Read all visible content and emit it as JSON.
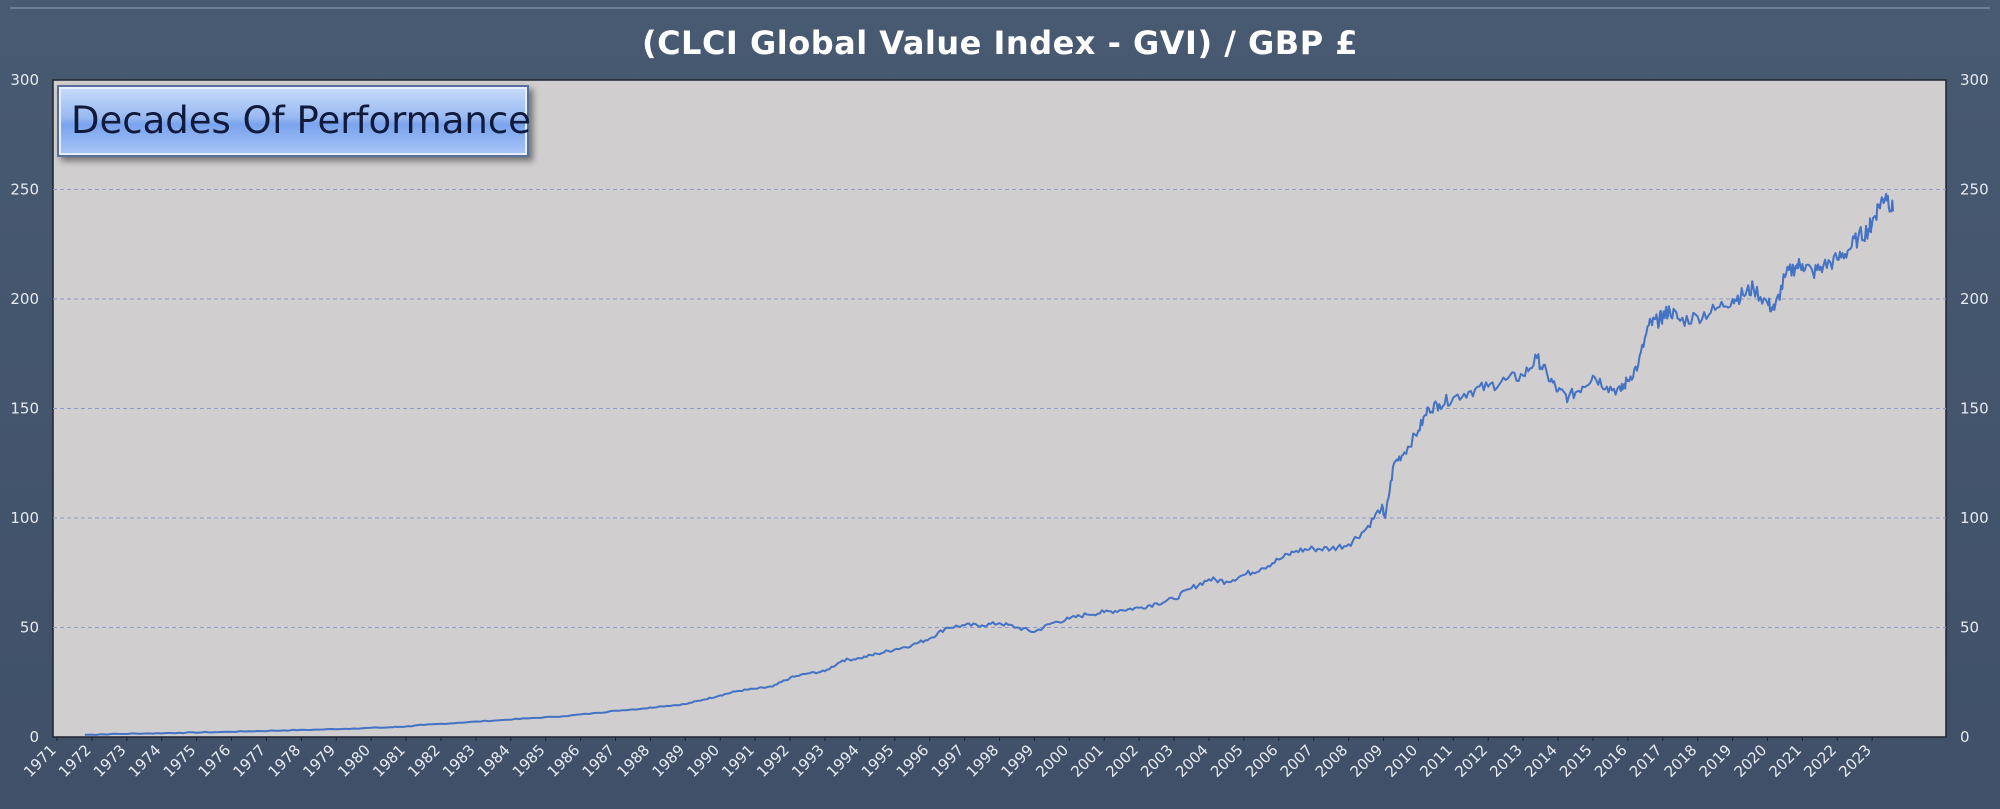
{
  "chart_data": {
    "type": "line",
    "title": "(CLCI Global Value Index - GVI) / GBP £",
    "annotation": "Decades Of Performance",
    "xlabel": "",
    "ylabel": "",
    "xlim": [
      1971,
      2025
    ],
    "ylim": [
      0,
      300
    ],
    "yticks": [
      0,
      50,
      100,
      150,
      200,
      250,
      300
    ],
    "xticks": [
      "1971",
      "1972",
      "1973",
      "1974",
      "1975",
      "1976",
      "1977",
      "1978",
      "1979",
      "1980",
      "1981",
      "1982",
      "1983",
      "1984",
      "1985",
      "1986",
      "1987",
      "1988",
      "1989",
      "1990",
      "1991",
      "1992",
      "1993",
      "1994",
      "1995",
      "1996",
      "1997",
      "1998",
      "1999",
      "2000",
      "2001",
      "2002",
      "2003",
      "2004",
      "2005",
      "2006",
      "2007",
      "2008",
      "2009",
      "2010",
      "2011",
      "2012",
      "2013",
      "2014",
      "2015",
      "2016",
      "2017",
      "2018",
      "2019",
      "2020",
      "2021",
      "2022",
      "2023"
    ],
    "grid": "horizontal dashed",
    "y_axis_both_sides": true,
    "colors": {
      "background": "#44546a",
      "plot_area": "#d0cece",
      "line": "#4472c4",
      "grid": "#8f9bc4",
      "text": "#ffffff"
    },
    "series": [
      {
        "name": "",
        "x": [
          1971.8,
          1972.5,
          1973.5,
          1974.5,
          1975.5,
          1976.5,
          1977.5,
          1978.5,
          1979.5,
          1980.5,
          1981.0,
          1981.5,
          1982.5,
          1983.5,
          1984.5,
          1985.5,
          1986.5,
          1987.0,
          1987.8,
          1988.3,
          1989.0,
          1989.5,
          1990.0,
          1990.5,
          1991.0,
          1991.5,
          1992.0,
          1992.5,
          1993.0,
          1993.5,
          1994.0,
          1994.5,
          1995.0,
          1995.5,
          1996.0,
          1996.5,
          1997.0,
          1997.5,
          1998.0,
          1998.5,
          1999.0,
          1999.5,
          2000.0,
          2000.5,
          2001.0,
          2001.5,
          2002.0,
          2002.5,
          2003.0,
          2003.5,
          2004.0,
          2004.5,
          2005.0,
          2005.5,
          2006.0,
          2006.5,
          2007.0,
          2007.5,
          2008.0,
          2008.5,
          2008.95,
          2009.05,
          2009.3,
          2009.6,
          2010.0,
          2010.3,
          2010.6,
          2011.0,
          2011.5,
          2012.0,
          2012.5,
          2013.0,
          2013.4,
          2013.7,
          2014.0,
          2014.3,
          2014.7,
          2015.0,
          2015.4,
          2015.8,
          2016.0,
          2016.3,
          2016.6,
          2016.85,
          2017.0,
          2017.2,
          2017.5,
          2018.0,
          2018.5,
          2019.0,
          2019.3,
          2019.6,
          2020.0,
          2020.2,
          2020.5,
          2020.8,
          2021.0,
          2021.3,
          2021.6,
          2022.0,
          2022.3,
          2022.6,
          2022.9,
          2023.0,
          2023.2,
          2023.4,
          2023.6
        ],
        "y": [
          1,
          1.3,
          1.6,
          1.9,
          2.2,
          2.6,
          3.0,
          3.4,
          3.9,
          4.4,
          4.8,
          5.5,
          6.5,
          7.5,
          8.5,
          9.5,
          11,
          12,
          13,
          14,
          15,
          17,
          19,
          21,
          22,
          23,
          27,
          29,
          30,
          35,
          36,
          38,
          40,
          42,
          45,
          50,
          51,
          51,
          52,
          50,
          48,
          52,
          54,
          56,
          57,
          58,
          59,
          61,
          63,
          68,
          72,
          71,
          74,
          77,
          81,
          85,
          86,
          86,
          88,
          95,
          105,
          100,
          125,
          130,
          140,
          150,
          152,
          155,
          158,
          160,
          163,
          165,
          173,
          165,
          158,
          155,
          160,
          165,
          160,
          158,
          163,
          170,
          188,
          190,
          192,
          195,
          190,
          192,
          195,
          200,
          202,
          205,
          198,
          195,
          210,
          215,
          216,
          212,
          215,
          218,
          222,
          228,
          232,
          235,
          243,
          248,
          240
        ]
      }
    ]
  }
}
